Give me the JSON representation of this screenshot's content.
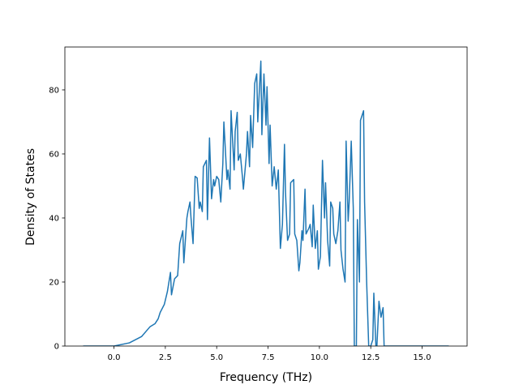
{
  "chart_data": {
    "type": "line",
    "x_label": "Frequency (THz)",
    "y_label": "Density of States",
    "xlim": [
      -2.39,
      17.19
    ],
    "ylim": [
      0,
      93.4
    ],
    "xticks": [
      {
        "value": 0,
        "label": "0.0"
      },
      {
        "value": 2.5,
        "label": "2.5"
      },
      {
        "value": 5,
        "label": "5.0"
      },
      {
        "value": 7.5,
        "label": "7.5"
      },
      {
        "value": 10,
        "label": "10.0"
      },
      {
        "value": 12.5,
        "label": "12.5"
      },
      {
        "value": 15,
        "label": "15.0"
      }
    ],
    "yticks": [
      0,
      20,
      40,
      60,
      80
    ],
    "grid": false,
    "series": [
      {
        "color": "#1f77b4",
        "x": [
          -1.5,
          0,
          0.75,
          1.35,
          1.75,
          2.0,
          2.15,
          2.25,
          2.45,
          2.6,
          2.75,
          2.8,
          2.95,
          3.1,
          3.2,
          3.35,
          3.4,
          3.55,
          3.6,
          3.7,
          3.75,
          3.85,
          3.95,
          4.05,
          4.15,
          4.2,
          4.3,
          4.35,
          4.5,
          4.55,
          4.65,
          4.75,
          4.85,
          4.9,
          5.0,
          5.1,
          5.2,
          5.3,
          5.35,
          5.5,
          5.55,
          5.65,
          5.7,
          5.85,
          5.9,
          6.0,
          6.05,
          6.15,
          6.25,
          6.3,
          6.45,
          6.5,
          6.6,
          6.65,
          6.75,
          6.85,
          6.95,
          7.0,
          7.15,
          7.2,
          7.3,
          7.4,
          7.45,
          7.55,
          7.6,
          7.7,
          7.8,
          7.9,
          8.0,
          8.1,
          8.2,
          8.3,
          8.35,
          8.45,
          8.55,
          8.6,
          8.75,
          8.8,
          8.9,
          9.0,
          9.05,
          9.15,
          9.2,
          9.3,
          9.35,
          9.5,
          9.55,
          9.65,
          9.7,
          9.8,
          9.9,
          9.95,
          10.05,
          10.15,
          10.25,
          10.3,
          10.4,
          10.5,
          10.55,
          10.65,
          10.7,
          10.8,
          10.9,
          11.0,
          11.05,
          11.15,
          11.25,
          11.3,
          11.4,
          11.45,
          11.55,
          11.65,
          11.7,
          11.8,
          11.85,
          11.95,
          12.0,
          12.15,
          12.2,
          12.3,
          12.4,
          12.5,
          12.6,
          12.65,
          12.75,
          12.8,
          12.9,
          13.0,
          13.1,
          13.15,
          16.3
        ],
        "values": [
          0,
          0,
          1,
          3,
          6,
          7,
          8.5,
          10.5,
          13,
          17,
          23,
          16,
          21,
          22,
          32,
          36,
          26,
          40,
          42,
          45,
          40,
          32,
          53,
          52.5,
          43,
          45,
          42,
          56,
          58,
          39.5,
          65,
          46,
          52,
          50,
          53,
          52,
          45,
          57,
          70,
          52,
          55,
          49,
          73.5,
          55,
          67,
          73,
          58,
          60,
          53,
          49,
          60,
          67,
          56,
          72,
          62,
          82,
          85,
          70,
          89,
          66,
          85,
          69,
          81,
          57,
          69,
          50,
          56,
          49,
          55,
          30.5,
          38,
          63,
          48,
          33,
          35,
          51,
          52,
          35,
          33,
          23.5,
          26,
          36,
          33,
          49,
          35,
          37,
          38,
          31,
          44,
          30.5,
          36,
          24,
          28,
          58,
          40,
          51,
          33,
          25,
          45,
          43,
          35,
          32,
          36,
          45,
          30,
          24,
          20,
          64,
          39,
          45,
          64,
          43,
          0,
          0,
          39.5,
          20,
          70.5,
          73.5,
          45,
          20,
          0,
          0,
          2,
          16.5,
          0,
          0,
          14,
          9,
          12,
          0,
          0
        ]
      }
    ]
  }
}
